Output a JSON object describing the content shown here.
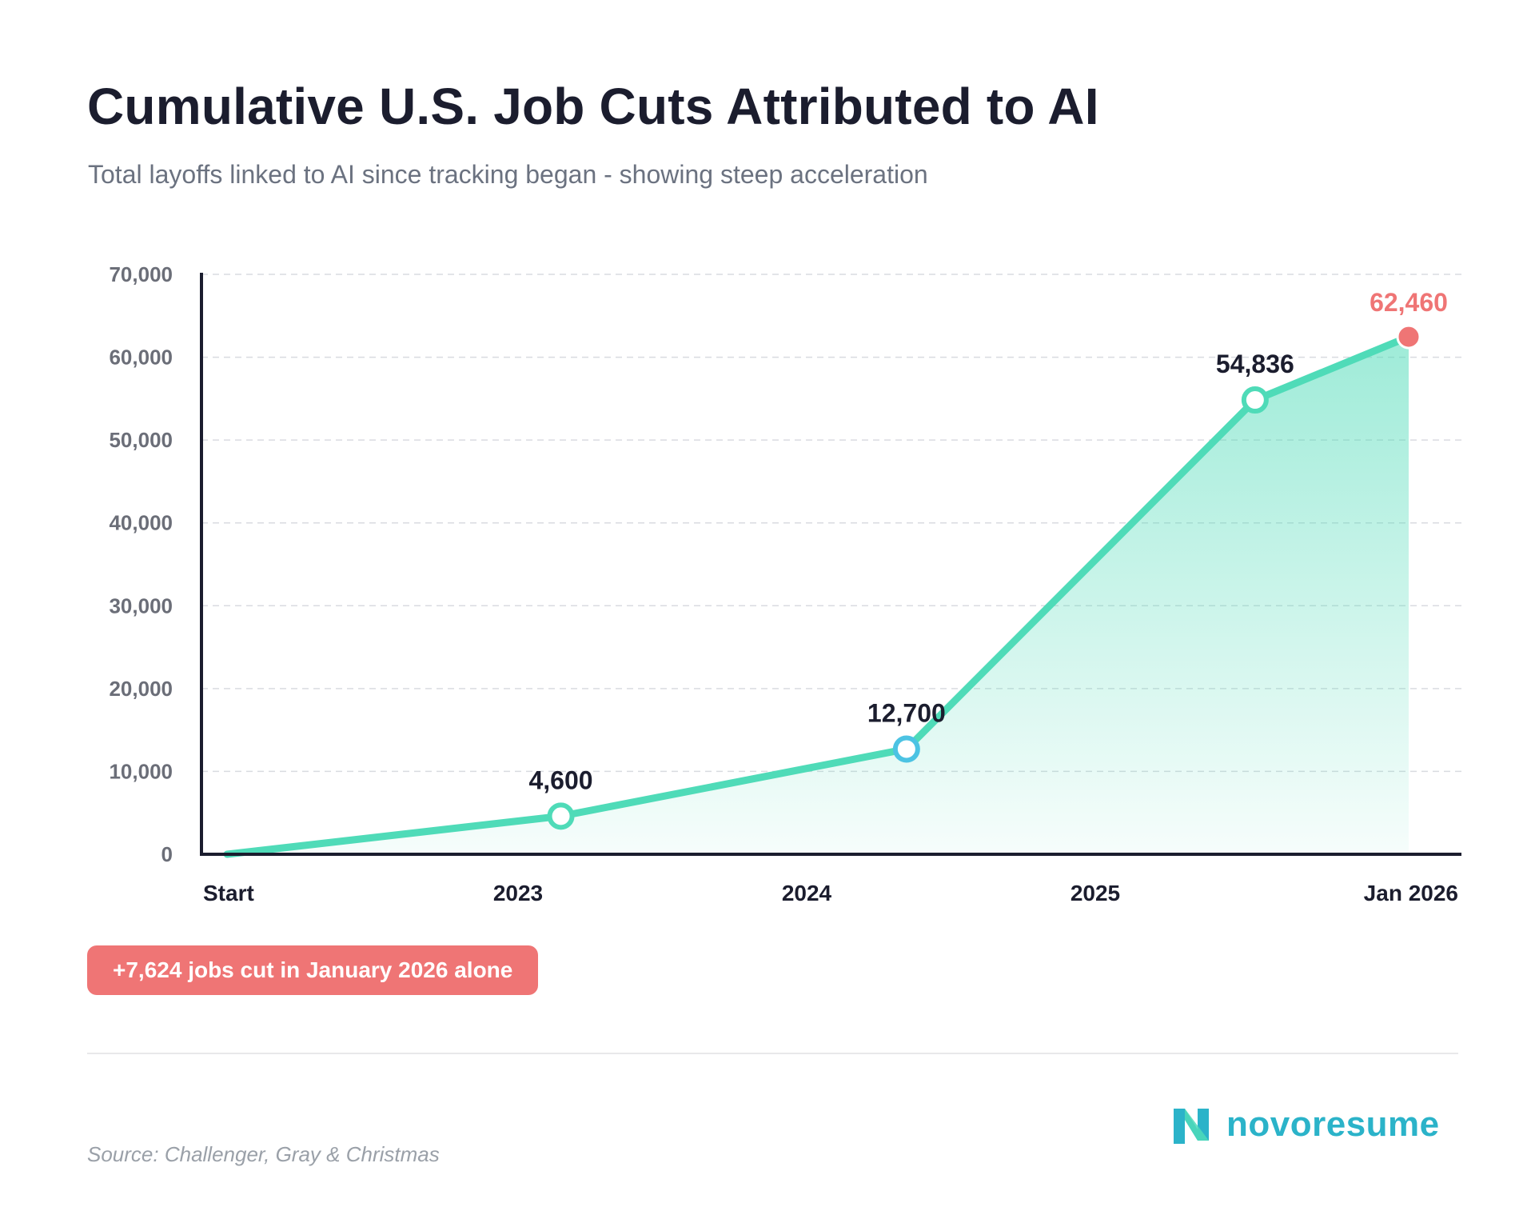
{
  "header": {
    "title": "Cumulative U.S. Job Cuts Attributed to AI",
    "subtitle": "Total layoffs linked to AI since tracking began - showing steep acceleration"
  },
  "chart_data": {
    "type": "area",
    "title": "Cumulative U.S. Job Cuts Attributed to AI",
    "subtitle": "Total layoffs linked to AI since tracking began - showing steep acceleration",
    "xlabel": "",
    "ylabel": "",
    "ylim": [
      0,
      70000
    ],
    "y_ticks": [
      0,
      10000,
      20000,
      30000,
      40000,
      50000,
      60000,
      70000
    ],
    "y_tick_labels": [
      "0",
      "10,000",
      "20,000",
      "30,000",
      "40,000",
      "50,000",
      "60,000",
      "70,000"
    ],
    "x_ticks": [
      "Start",
      "2023",
      "2024",
      "2025",
      "Jan 2026"
    ],
    "x_tick_positions": [
      0,
      1,
      2,
      3,
      4
    ],
    "xlim": [
      0,
      4
    ],
    "grid": true,
    "points": [
      {
        "x": 0,
        "y": 0,
        "label": ""
      },
      {
        "x": 1.13,
        "y": 4600,
        "label": "4,600"
      },
      {
        "x": 2.3,
        "y": 12700,
        "label": "12,700"
      },
      {
        "x": 3.48,
        "y": 54836,
        "label": "54,836"
      },
      {
        "x": 4,
        "y": 62460,
        "label": "62,460",
        "highlight": true
      }
    ],
    "colors": {
      "line": "#4fdbb8",
      "fill": "#4fdbb8",
      "marker_stroke_low": "#4cc3e3",
      "highlight": "#ef7575"
    }
  },
  "callout": {
    "text": "+7,624 jobs cut in January 2026 alone"
  },
  "footer": {
    "source": "Source: Challenger, Gray & Christmas",
    "logo_text": "novoresume",
    "logo_icon": "novoresume-logo-icon"
  }
}
